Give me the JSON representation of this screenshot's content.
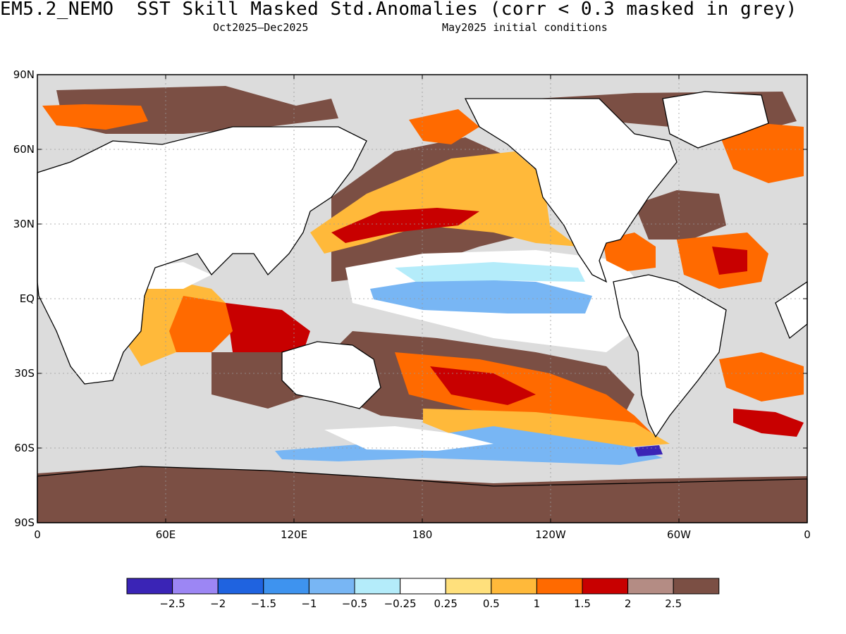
{
  "header": {
    "title": "EM5.2_NEMO  SST Skill Masked Std.Anomalies (corr < 0.3 masked in grey)",
    "period": "Oct2025–Dec2025",
    "init": "May2025 initial conditions"
  },
  "axes": {
    "lat_labels": [
      "90N",
      "60N",
      "30N",
      "EQ",
      "30S",
      "60S",
      "90S"
    ],
    "lon_labels": [
      "0",
      "60E",
      "120E",
      "180",
      "120W",
      "60W",
      "0"
    ]
  },
  "colorbar": {
    "colors": [
      "#3a24b6",
      "#9c86f4",
      "#1f63e0",
      "#3e93ef",
      "#78b6f4",
      "#b4ecfa",
      "#ffffff",
      "#ffe07c",
      "#ffb93a",
      "#ff6a00",
      "#c80000",
      "#b48c84",
      "#7b4f44"
    ],
    "labels": [
      "−2.5",
      "−2",
      "−1.5",
      "−1",
      "−0.5",
      "−0.25",
      "0.25",
      "0.5",
      "1",
      "1.5",
      "2",
      "2.5"
    ]
  },
  "colors": {
    "mask_grey": "#dcdcdc",
    "land": "#ffffff",
    "coast": "#000000"
  }
}
